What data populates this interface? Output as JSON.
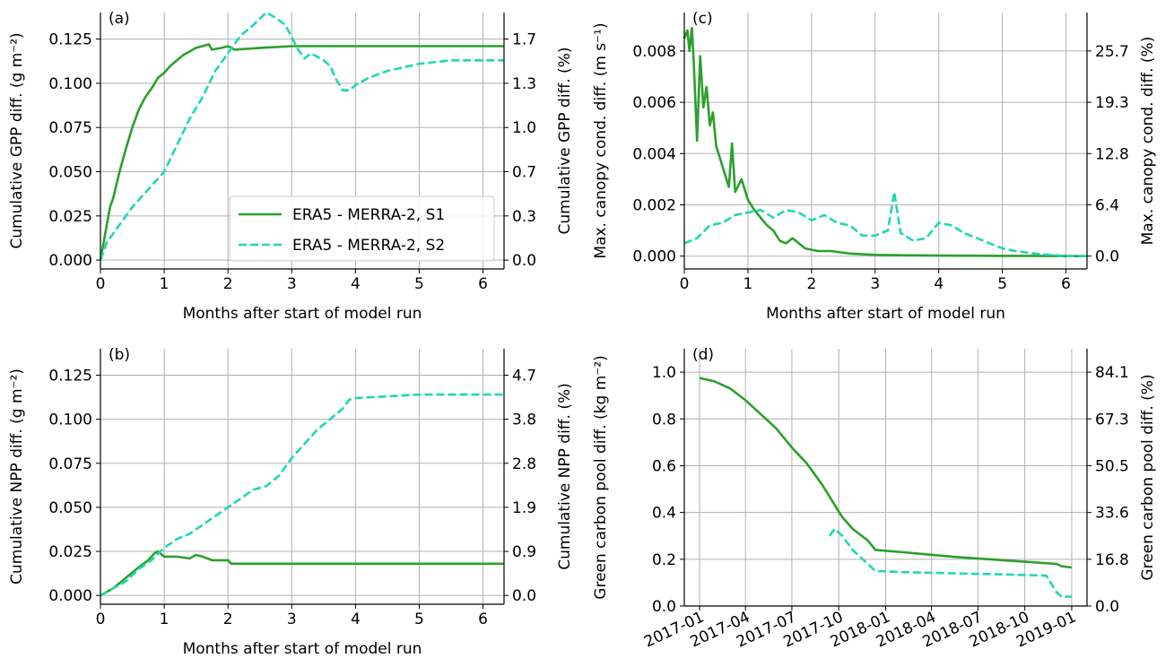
{
  "colors": {
    "s1": "#2ca02c",
    "s2": "#1ed7b4",
    "grid": "#b0b0b0"
  },
  "legend": {
    "entries": [
      {
        "label": "ERA5 - MERRA-2, S1",
        "style": "solid",
        "color": "#2ca02c"
      },
      {
        "label": "ERA5 - MERRA-2, S2",
        "style": "dashed",
        "color": "#1ed7b4"
      }
    ],
    "placement": "lower-right of panel (a)"
  },
  "chart_data": [
    {
      "panel": "a",
      "type": "line",
      "tag": "(a)",
      "xlabel": "Months after start of model run",
      "ylabel": "Cumulative GPP diff. (g m⁻²)",
      "ylabel_right": "Cumulative GPP diff. (%)",
      "xlim": [
        0,
        6.33
      ],
      "ylim": [
        -0.005,
        0.14
      ],
      "grid": true,
      "xticks": [
        "0",
        "1",
        "2",
        "3",
        "4",
        "5",
        "6"
      ],
      "yticks": [
        "0.000",
        "0.025",
        "0.050",
        "0.075",
        "0.100",
        "0.125"
      ],
      "yticks_right": [
        "0.0",
        "0.3",
        "0.7",
        "1.0",
        "1.3",
        "1.7"
      ],
      "series": [
        {
          "name": "ERA5 - MERRA-2, S1",
          "style": "solid",
          "x": [
            0,
            0.05,
            0.1,
            0.15,
            0.2,
            0.3,
            0.4,
            0.5,
            0.6,
            0.7,
            0.8,
            0.9,
            1.0,
            1.1,
            1.2,
            1.3,
            1.4,
            1.5,
            1.6,
            1.7,
            1.75,
            1.9,
            2.0,
            2.1,
            2.5,
            3.0,
            4.0,
            5.0,
            6.33
          ],
          "y": [
            0.0,
            0.01,
            0.02,
            0.03,
            0.035,
            0.05,
            0.063,
            0.075,
            0.085,
            0.092,
            0.097,
            0.103,
            0.106,
            0.11,
            0.113,
            0.116,
            0.118,
            0.12,
            0.121,
            0.122,
            0.119,
            0.12,
            0.121,
            0.119,
            0.12,
            0.121,
            0.121,
            0.121,
            0.121
          ]
        },
        {
          "name": "ERA5 - MERRA-2, S2",
          "style": "dashed",
          "x": [
            0,
            0.1,
            0.3,
            0.5,
            0.7,
            0.9,
            1.0,
            1.2,
            1.4,
            1.6,
            1.8,
            2.0,
            2.2,
            2.4,
            2.6,
            2.75,
            2.9,
            3.0,
            3.1,
            3.2,
            3.3,
            3.4,
            3.5,
            3.6,
            3.7,
            3.8,
            3.9,
            4.0,
            4.2,
            4.5,
            5.0,
            5.5,
            6.33
          ],
          "y": [
            0.0,
            0.01,
            0.02,
            0.03,
            0.038,
            0.046,
            0.05,
            0.065,
            0.08,
            0.092,
            0.107,
            0.117,
            0.127,
            0.133,
            0.14,
            0.137,
            0.133,
            0.126,
            0.119,
            0.114,
            0.117,
            0.115,
            0.113,
            0.11,
            0.102,
            0.096,
            0.096,
            0.099,
            0.103,
            0.107,
            0.111,
            0.113,
            0.113
          ]
        }
      ]
    },
    {
      "panel": "b",
      "type": "line",
      "tag": "(b)",
      "xlabel": "Months after start of model run",
      "ylabel": "Cumulative NPP diff. (g m⁻²)",
      "ylabel_right": "Cumulative NPP diff. (%)",
      "xlim": [
        0,
        6.33
      ],
      "ylim": [
        -0.005,
        0.14
      ],
      "grid": true,
      "xticks": [
        "0",
        "1",
        "2",
        "3",
        "4",
        "5",
        "6"
      ],
      "yticks": [
        "0.000",
        "0.025",
        "0.050",
        "0.075",
        "0.100",
        "0.125"
      ],
      "yticks_right": [
        "0.0",
        "0.9",
        "1.9",
        "2.8",
        "3.8",
        "4.7"
      ],
      "series": [
        {
          "name": "ERA5 - MERRA-2, S1",
          "style": "solid",
          "x": [
            0,
            0.2,
            0.4,
            0.6,
            0.75,
            0.85,
            0.9,
            1.0,
            1.2,
            1.4,
            1.5,
            1.6,
            1.75,
            1.9,
            2.0,
            2.05,
            3.0,
            4.0,
            5.0,
            6.33
          ],
          "y": [
            0.0,
            0.004,
            0.01,
            0.016,
            0.02,
            0.024,
            0.025,
            0.022,
            0.022,
            0.021,
            0.023,
            0.022,
            0.02,
            0.02,
            0.02,
            0.018,
            0.018,
            0.018,
            0.018,
            0.018
          ]
        },
        {
          "name": "ERA5 - MERRA-2, S2",
          "style": "dashed",
          "x": [
            0,
            0.2,
            0.4,
            0.6,
            0.8,
            1.0,
            1.2,
            1.4,
            1.6,
            1.8,
            2.0,
            2.2,
            2.4,
            2.6,
            2.8,
            3.0,
            3.2,
            3.4,
            3.6,
            3.8,
            3.9,
            4.0,
            4.5,
            5.0,
            6.33
          ],
          "y": [
            0.0,
            0.004,
            0.008,
            0.015,
            0.02,
            0.027,
            0.032,
            0.035,
            0.04,
            0.045,
            0.05,
            0.055,
            0.06,
            0.062,
            0.068,
            0.078,
            0.086,
            0.094,
            0.1,
            0.106,
            0.111,
            0.112,
            0.113,
            0.114,
            0.114
          ]
        }
      ]
    },
    {
      "panel": "c",
      "type": "line",
      "tag": "(c)",
      "xlabel": "Months after start of model run",
      "ylabel": "Max. canopy cond. diff. (m s⁻¹)",
      "ylabel_right": "Max. canopy cond. diff. (%)",
      "xlim": [
        0,
        6.33
      ],
      "ylim": [
        -0.0005,
        0.0095
      ],
      "grid": true,
      "xticks": [
        "0",
        "1",
        "2",
        "3",
        "4",
        "5",
        "6"
      ],
      "yticks": [
        "0.000",
        "0.002",
        "0.004",
        "0.006",
        "0.008"
      ],
      "yticks_right": [
        "0.0",
        "6.4",
        "12.8",
        "19.3",
        "25.7"
      ],
      "series": [
        {
          "name": "ERA5 - MERRA-2, S1",
          "style": "solid",
          "x": [
            0,
            0.05,
            0.08,
            0.12,
            0.15,
            0.2,
            0.25,
            0.3,
            0.35,
            0.4,
            0.45,
            0.5,
            0.6,
            0.7,
            0.75,
            0.8,
            0.9,
            1.0,
            1.1,
            1.2,
            1.3,
            1.4,
            1.5,
            1.6,
            1.7,
            1.9,
            2.1,
            2.3,
            2.6,
            3.0,
            3.5,
            4.0,
            5.0,
            6.33
          ],
          "y": [
            0.0085,
            0.0088,
            0.008,
            0.0089,
            0.0075,
            0.0045,
            0.0078,
            0.0058,
            0.0066,
            0.0051,
            0.0056,
            0.0043,
            0.0035,
            0.0027,
            0.0044,
            0.0025,
            0.003,
            0.0022,
            0.0018,
            0.0015,
            0.0012,
            0.001,
            0.0006,
            0.0005,
            0.0007,
            0.0003,
            0.0002,
            0.0002,
            0.0001,
            5e-05,
            3e-05,
            2e-05,
            1e-05,
            0.0
          ]
        },
        {
          "name": "ERA5 - MERRA-2, S2",
          "style": "dashed",
          "x": [
            0,
            0.2,
            0.4,
            0.6,
            0.8,
            1.0,
            1.2,
            1.4,
            1.6,
            1.8,
            2.0,
            2.2,
            2.4,
            2.6,
            2.8,
            3.0,
            3.2,
            3.3,
            3.4,
            3.6,
            3.8,
            4.0,
            4.2,
            4.4,
            4.6,
            4.8,
            5.0,
            5.2,
            5.5,
            6.0,
            6.33
          ],
          "y": [
            0.0005,
            0.0007,
            0.0012,
            0.0013,
            0.0016,
            0.0017,
            0.0018,
            0.0015,
            0.0018,
            0.0017,
            0.0014,
            0.0016,
            0.0013,
            0.0012,
            0.0008,
            0.0008,
            0.001,
            0.0025,
            0.0009,
            0.0006,
            0.0007,
            0.0013,
            0.0012,
            0.0009,
            0.0007,
            0.0005,
            0.0003,
            0.0002,
            0.0001,
            0.0,
            0.0
          ]
        }
      ]
    },
    {
      "panel": "d",
      "type": "line",
      "tag": "(d)",
      "xlabel": "",
      "ylabel": "Green carbon pool diff. (kg m⁻²)",
      "ylabel_right": "Green carbon pool diff. (%)",
      "xlim": [
        -30,
        760
      ],
      "ylim": [
        0.0,
        1.1
      ],
      "grid": true,
      "xticks": [
        "2017-01",
        "2017-04",
        "2017-07",
        "2017-10",
        "2018-01",
        "2018-04",
        "2018-07",
        "2018-10",
        "2019-01"
      ],
      "xtick_days": [
        0,
        90,
        181,
        273,
        365,
        455,
        546,
        638,
        730
      ],
      "yticks": [
        "0.0",
        "0.2",
        "0.4",
        "0.6",
        "0.8",
        "1.0"
      ],
      "yticks_right": [
        "0.0",
        "16.8",
        "33.6",
        "50.5",
        "67.3",
        "84.1"
      ],
      "series": [
        {
          "name": "ERA5 - MERRA-2, S1",
          "style": "solid",
          "x": [
            0,
            30,
            60,
            90,
            120,
            150,
            180,
            210,
            240,
            260,
            280,
            300,
            330,
            345,
            400,
            500,
            600,
            700,
            710,
            730
          ],
          "y": [
            0.975,
            0.96,
            0.93,
            0.88,
            0.82,
            0.76,
            0.68,
            0.61,
            0.52,
            0.45,
            0.38,
            0.33,
            0.28,
            0.24,
            0.23,
            0.21,
            0.195,
            0.18,
            0.17,
            0.165
          ]
        },
        {
          "name": "ERA5 - MERRA-2, S2",
          "style": "dashed",
          "x": [
            255,
            265,
            280,
            300,
            330,
            345,
            400,
            500,
            600,
            680,
            700,
            710,
            730
          ],
          "y": [
            0.3,
            0.33,
            0.3,
            0.24,
            0.18,
            0.15,
            0.145,
            0.14,
            0.135,
            0.13,
            0.06,
            0.04,
            0.04
          ]
        }
      ]
    }
  ]
}
